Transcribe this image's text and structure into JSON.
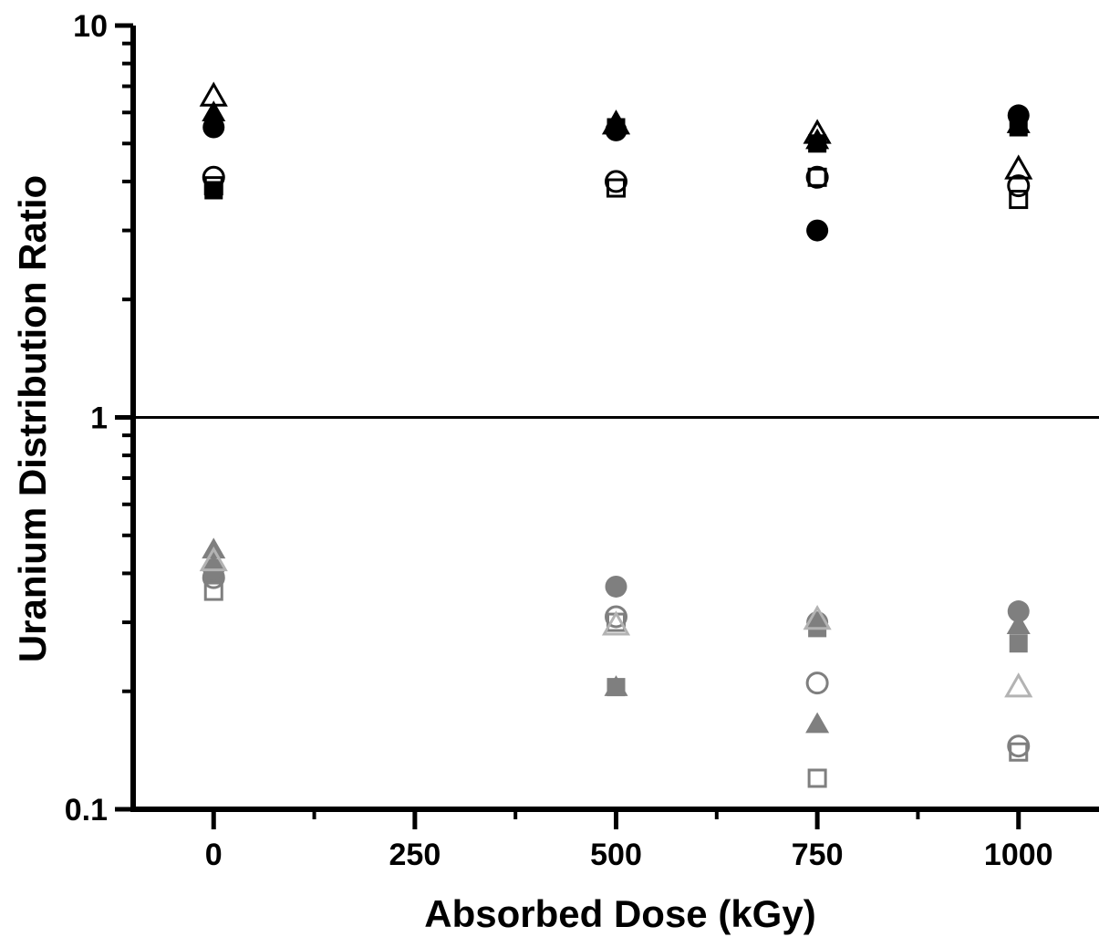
{
  "chart_data": {
    "type": "scatter",
    "title": "",
    "xlabel": "Absorbed Dose (kGy)",
    "ylabel": "Uranium Distribution Ratio",
    "xlim": [
      -100,
      1100
    ],
    "ylim": [
      0.1,
      10
    ],
    "y_scale": "log",
    "x_ticks": [
      0,
      250,
      500,
      750,
      1000
    ],
    "y_ticks": [
      0.1,
      1,
      10
    ],
    "y_tick_labels": [
      "0.1",
      "1",
      "10"
    ],
    "reference_line_y": 1,
    "grid": false,
    "series": [
      {
        "marker": "filled-square",
        "color": "#000000",
        "x": [
          0,
          500,
          750,
          1000
        ],
        "y": [
          3.8,
          5.5,
          5.0,
          5.5
        ]
      },
      {
        "marker": "open-square",
        "color": "#000000",
        "x": [
          0,
          500,
          750,
          1000
        ],
        "y": [
          3.9,
          3.85,
          4.1,
          3.6
        ]
      },
      {
        "marker": "filled-circle",
        "color": "#000000",
        "x": [
          0,
          500,
          750,
          1000
        ],
        "y": [
          5.5,
          5.4,
          3.0,
          5.9
        ]
      },
      {
        "marker": "open-circle",
        "color": "#000000",
        "x": [
          0,
          500,
          750,
          1000
        ],
        "y": [
          4.1,
          4.0,
          4.1,
          3.9
        ]
      },
      {
        "marker": "filled-triangle",
        "color": "#000000",
        "x": [
          0,
          500,
          750,
          1000
        ],
        "y": [
          6.0,
          5.6,
          5.1,
          5.6
        ]
      },
      {
        "marker": "open-triangle",
        "color": "#000000",
        "x": [
          0,
          500,
          750,
          1000
        ],
        "y": [
          6.6,
          5.6,
          5.3,
          4.3
        ]
      },
      {
        "marker": "filled-square",
        "color": "#7f7f7f",
        "x": [
          0,
          500,
          750,
          1000
        ],
        "y": [
          0.4,
          0.205,
          0.29,
          0.265
        ]
      },
      {
        "marker": "open-square",
        "color": "#7f7f7f",
        "x": [
          0,
          500,
          750,
          1000
        ],
        "y": [
          0.36,
          0.3,
          0.12,
          0.14
        ]
      },
      {
        "marker": "filled-circle",
        "color": "#7f7f7f",
        "x": [
          0,
          500,
          750,
          1000
        ],
        "y": [
          0.41,
          0.37,
          0.3,
          0.32
        ]
      },
      {
        "marker": "open-circle",
        "color": "#7f7f7f",
        "x": [
          0,
          500,
          750,
          1000
        ],
        "y": [
          0.39,
          0.31,
          0.21,
          0.145
        ]
      },
      {
        "marker": "filled-triangle",
        "color": "#7f7f7f",
        "x": [
          0,
          500,
          750,
          1000
        ],
        "y": [
          0.46,
          0.205,
          0.165,
          0.295
        ]
      },
      {
        "marker": "open-triangle",
        "color": "#b3b3b3",
        "x": [
          0,
          500,
          750,
          1000
        ],
        "y": [
          0.43,
          0.295,
          0.305,
          0.205
        ]
      }
    ]
  }
}
